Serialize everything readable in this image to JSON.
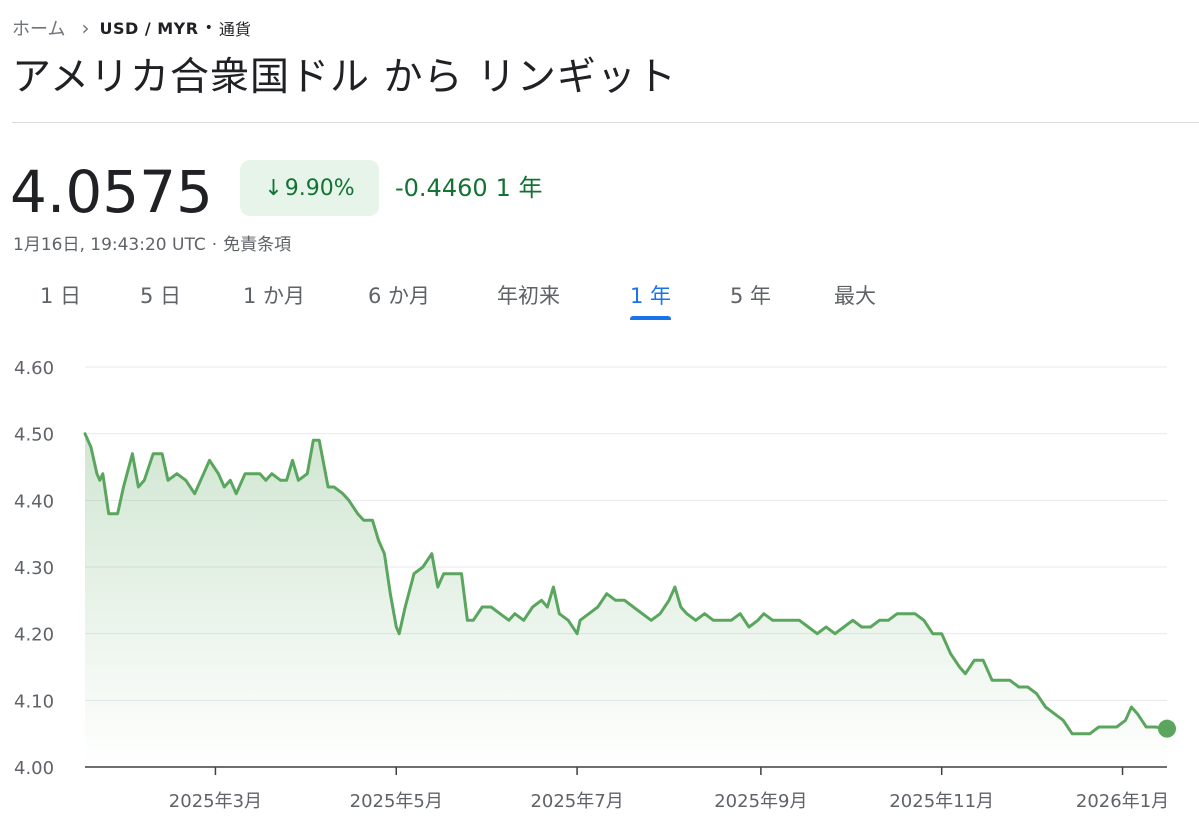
{
  "breadcrumb": {
    "home": "ホーム",
    "pair": "USD / MYR",
    "dot": "•",
    "category": "通貨"
  },
  "title": "アメリカ合衆国ドル から リンギット",
  "quote": {
    "price": "4.0575",
    "change_percent": "9.90%",
    "change_direction": "down",
    "change_abs": "-0.4460",
    "change_period": "1 年",
    "timestamp": "1月16日, 19:43:20 UTC",
    "separator": "·",
    "disclaimer": "免責条項"
  },
  "tabs": [
    {
      "label": "1 日",
      "active": false
    },
    {
      "label": "5 日",
      "active": false
    },
    {
      "label": "1 か月",
      "active": false
    },
    {
      "label": "6 か月",
      "active": false
    },
    {
      "label": "年初来",
      "active": false
    },
    {
      "label": "1 年",
      "active": true
    },
    {
      "label": "5 年",
      "active": false
    },
    {
      "label": "最大",
      "active": false
    }
  ],
  "colors": {
    "line": "#5aa65e",
    "fill_top": "#5aa65e",
    "grid": "#e8eaed",
    "axis_label": "#5f6368",
    "accent": "#1a73e8",
    "positive_badge_bg": "#e6f4ea",
    "change_text": "#137333"
  },
  "chart_data": {
    "type": "area",
    "ylim": [
      4.0,
      4.6
    ],
    "yticks": [
      4.0,
      4.1,
      4.2,
      4.3,
      4.4,
      4.5,
      4.6
    ],
    "ytick_labels": [
      "4.00",
      "4.10",
      "4.20",
      "4.30",
      "4.40",
      "4.50",
      "4.60"
    ],
    "xlim": [
      "2025-01-16",
      "2026-01-16"
    ],
    "xticks": [
      "2025-03-01",
      "2025-05-01",
      "2025-07-01",
      "2025-09-01",
      "2025-11-01",
      "2026-01-01"
    ],
    "xtick_labels": [
      "2025年3月",
      "2025年5月",
      "2025年7月",
      "2025年9月",
      "2025年11月",
      "2026年1月"
    ],
    "grid": true,
    "last_point_marker": true,
    "series": [
      {
        "values": [
          [
            "2025-01-16",
            4.5
          ],
          [
            "2025-01-18",
            4.48
          ],
          [
            "2025-01-20",
            4.44
          ],
          [
            "2025-01-21",
            4.43
          ],
          [
            "2025-01-22",
            4.44
          ],
          [
            "2025-01-24",
            4.38
          ],
          [
            "2025-01-27",
            4.38
          ],
          [
            "2025-01-29",
            4.42
          ],
          [
            "2025-02-01",
            4.47
          ],
          [
            "2025-02-03",
            4.42
          ],
          [
            "2025-02-05",
            4.43
          ],
          [
            "2025-02-08",
            4.47
          ],
          [
            "2025-02-11",
            4.47
          ],
          [
            "2025-02-13",
            4.43
          ],
          [
            "2025-02-16",
            4.44
          ],
          [
            "2025-02-19",
            4.43
          ],
          [
            "2025-02-22",
            4.41
          ],
          [
            "2025-02-25",
            4.44
          ],
          [
            "2025-02-27",
            4.46
          ],
          [
            "2025-03-02",
            4.44
          ],
          [
            "2025-03-04",
            4.42
          ],
          [
            "2025-03-06",
            4.43
          ],
          [
            "2025-03-08",
            4.41
          ],
          [
            "2025-03-11",
            4.44
          ],
          [
            "2025-03-13",
            4.44
          ],
          [
            "2025-03-16",
            4.44
          ],
          [
            "2025-03-18",
            4.43
          ],
          [
            "2025-03-20",
            4.44
          ],
          [
            "2025-03-23",
            4.43
          ],
          [
            "2025-03-25",
            4.43
          ],
          [
            "2025-03-27",
            4.46
          ],
          [
            "2025-03-29",
            4.43
          ],
          [
            "2025-04-01",
            4.44
          ],
          [
            "2025-04-03",
            4.49
          ],
          [
            "2025-04-05",
            4.49
          ],
          [
            "2025-04-08",
            4.42
          ],
          [
            "2025-04-10",
            4.42
          ],
          [
            "2025-04-13",
            4.41
          ],
          [
            "2025-04-15",
            4.4
          ],
          [
            "2025-04-18",
            4.38
          ],
          [
            "2025-04-20",
            4.37
          ],
          [
            "2025-04-23",
            4.37
          ],
          [
            "2025-04-25",
            4.34
          ],
          [
            "2025-04-27",
            4.32
          ],
          [
            "2025-04-29",
            4.26
          ],
          [
            "2025-05-01",
            4.21
          ],
          [
            "2025-05-02",
            4.2
          ],
          [
            "2025-05-04",
            4.24
          ],
          [
            "2025-05-07",
            4.29
          ],
          [
            "2025-05-10",
            4.3
          ],
          [
            "2025-05-13",
            4.32
          ],
          [
            "2025-05-15",
            4.27
          ],
          [
            "2025-05-17",
            4.29
          ],
          [
            "2025-05-20",
            4.29
          ],
          [
            "2025-05-23",
            4.29
          ],
          [
            "2025-05-25",
            4.22
          ],
          [
            "2025-05-27",
            4.22
          ],
          [
            "2025-05-30",
            4.24
          ],
          [
            "2025-06-02",
            4.24
          ],
          [
            "2025-06-05",
            4.23
          ],
          [
            "2025-06-08",
            4.22
          ],
          [
            "2025-06-10",
            4.23
          ],
          [
            "2025-06-13",
            4.22
          ],
          [
            "2025-06-16",
            4.24
          ],
          [
            "2025-06-19",
            4.25
          ],
          [
            "2025-06-21",
            4.24
          ],
          [
            "2025-06-23",
            4.27
          ],
          [
            "2025-06-25",
            4.23
          ],
          [
            "2025-06-28",
            4.22
          ],
          [
            "2025-07-01",
            4.2
          ],
          [
            "2025-07-02",
            4.22
          ],
          [
            "2025-07-05",
            4.23
          ],
          [
            "2025-07-08",
            4.24
          ],
          [
            "2025-07-11",
            4.26
          ],
          [
            "2025-07-14",
            4.25
          ],
          [
            "2025-07-17",
            4.25
          ],
          [
            "2025-07-20",
            4.24
          ],
          [
            "2025-07-23",
            4.23
          ],
          [
            "2025-07-26",
            4.22
          ],
          [
            "2025-07-29",
            4.23
          ],
          [
            "2025-08-01",
            4.25
          ],
          [
            "2025-08-03",
            4.27
          ],
          [
            "2025-08-05",
            4.24
          ],
          [
            "2025-08-07",
            4.23
          ],
          [
            "2025-08-10",
            4.22
          ],
          [
            "2025-08-13",
            4.23
          ],
          [
            "2025-08-16",
            4.22
          ],
          [
            "2025-08-19",
            4.22
          ],
          [
            "2025-08-22",
            4.22
          ],
          [
            "2025-08-25",
            4.23
          ],
          [
            "2025-08-28",
            4.21
          ],
          [
            "2025-08-31",
            4.22
          ],
          [
            "2025-09-02",
            4.23
          ],
          [
            "2025-09-05",
            4.22
          ],
          [
            "2025-09-08",
            4.22
          ],
          [
            "2025-09-11",
            4.22
          ],
          [
            "2025-09-14",
            4.22
          ],
          [
            "2025-09-17",
            4.21
          ],
          [
            "2025-09-20",
            4.2
          ],
          [
            "2025-09-23",
            4.21
          ],
          [
            "2025-09-26",
            4.2
          ],
          [
            "2025-09-29",
            4.21
          ],
          [
            "2025-10-02",
            4.22
          ],
          [
            "2025-10-05",
            4.21
          ],
          [
            "2025-10-08",
            4.21
          ],
          [
            "2025-10-11",
            4.22
          ],
          [
            "2025-10-14",
            4.22
          ],
          [
            "2025-10-17",
            4.23
          ],
          [
            "2025-10-20",
            4.23
          ],
          [
            "2025-10-23",
            4.23
          ],
          [
            "2025-10-26",
            4.22
          ],
          [
            "2025-10-29",
            4.2
          ],
          [
            "2025-11-01",
            4.2
          ],
          [
            "2025-11-04",
            4.17
          ],
          [
            "2025-11-07",
            4.15
          ],
          [
            "2025-11-09",
            4.14
          ],
          [
            "2025-11-12",
            4.16
          ],
          [
            "2025-11-15",
            4.16
          ],
          [
            "2025-11-18",
            4.13
          ],
          [
            "2025-11-21",
            4.13
          ],
          [
            "2025-11-24",
            4.13
          ],
          [
            "2025-11-27",
            4.12
          ],
          [
            "2025-11-30",
            4.12
          ],
          [
            "2025-12-03",
            4.11
          ],
          [
            "2025-12-06",
            4.09
          ],
          [
            "2025-12-09",
            4.08
          ],
          [
            "2025-12-12",
            4.07
          ],
          [
            "2025-12-15",
            4.05
          ],
          [
            "2025-12-18",
            4.05
          ],
          [
            "2025-12-21",
            4.05
          ],
          [
            "2025-12-24",
            4.06
          ],
          [
            "2025-12-27",
            4.06
          ],
          [
            "2025-12-30",
            4.06
          ],
          [
            "2026-01-02",
            4.07
          ],
          [
            "2026-01-04",
            4.09
          ],
          [
            "2026-01-06",
            4.08
          ],
          [
            "2026-01-09",
            4.06
          ],
          [
            "2026-01-12",
            4.06
          ],
          [
            "2026-01-16",
            4.0575
          ]
        ]
      }
    ]
  }
}
